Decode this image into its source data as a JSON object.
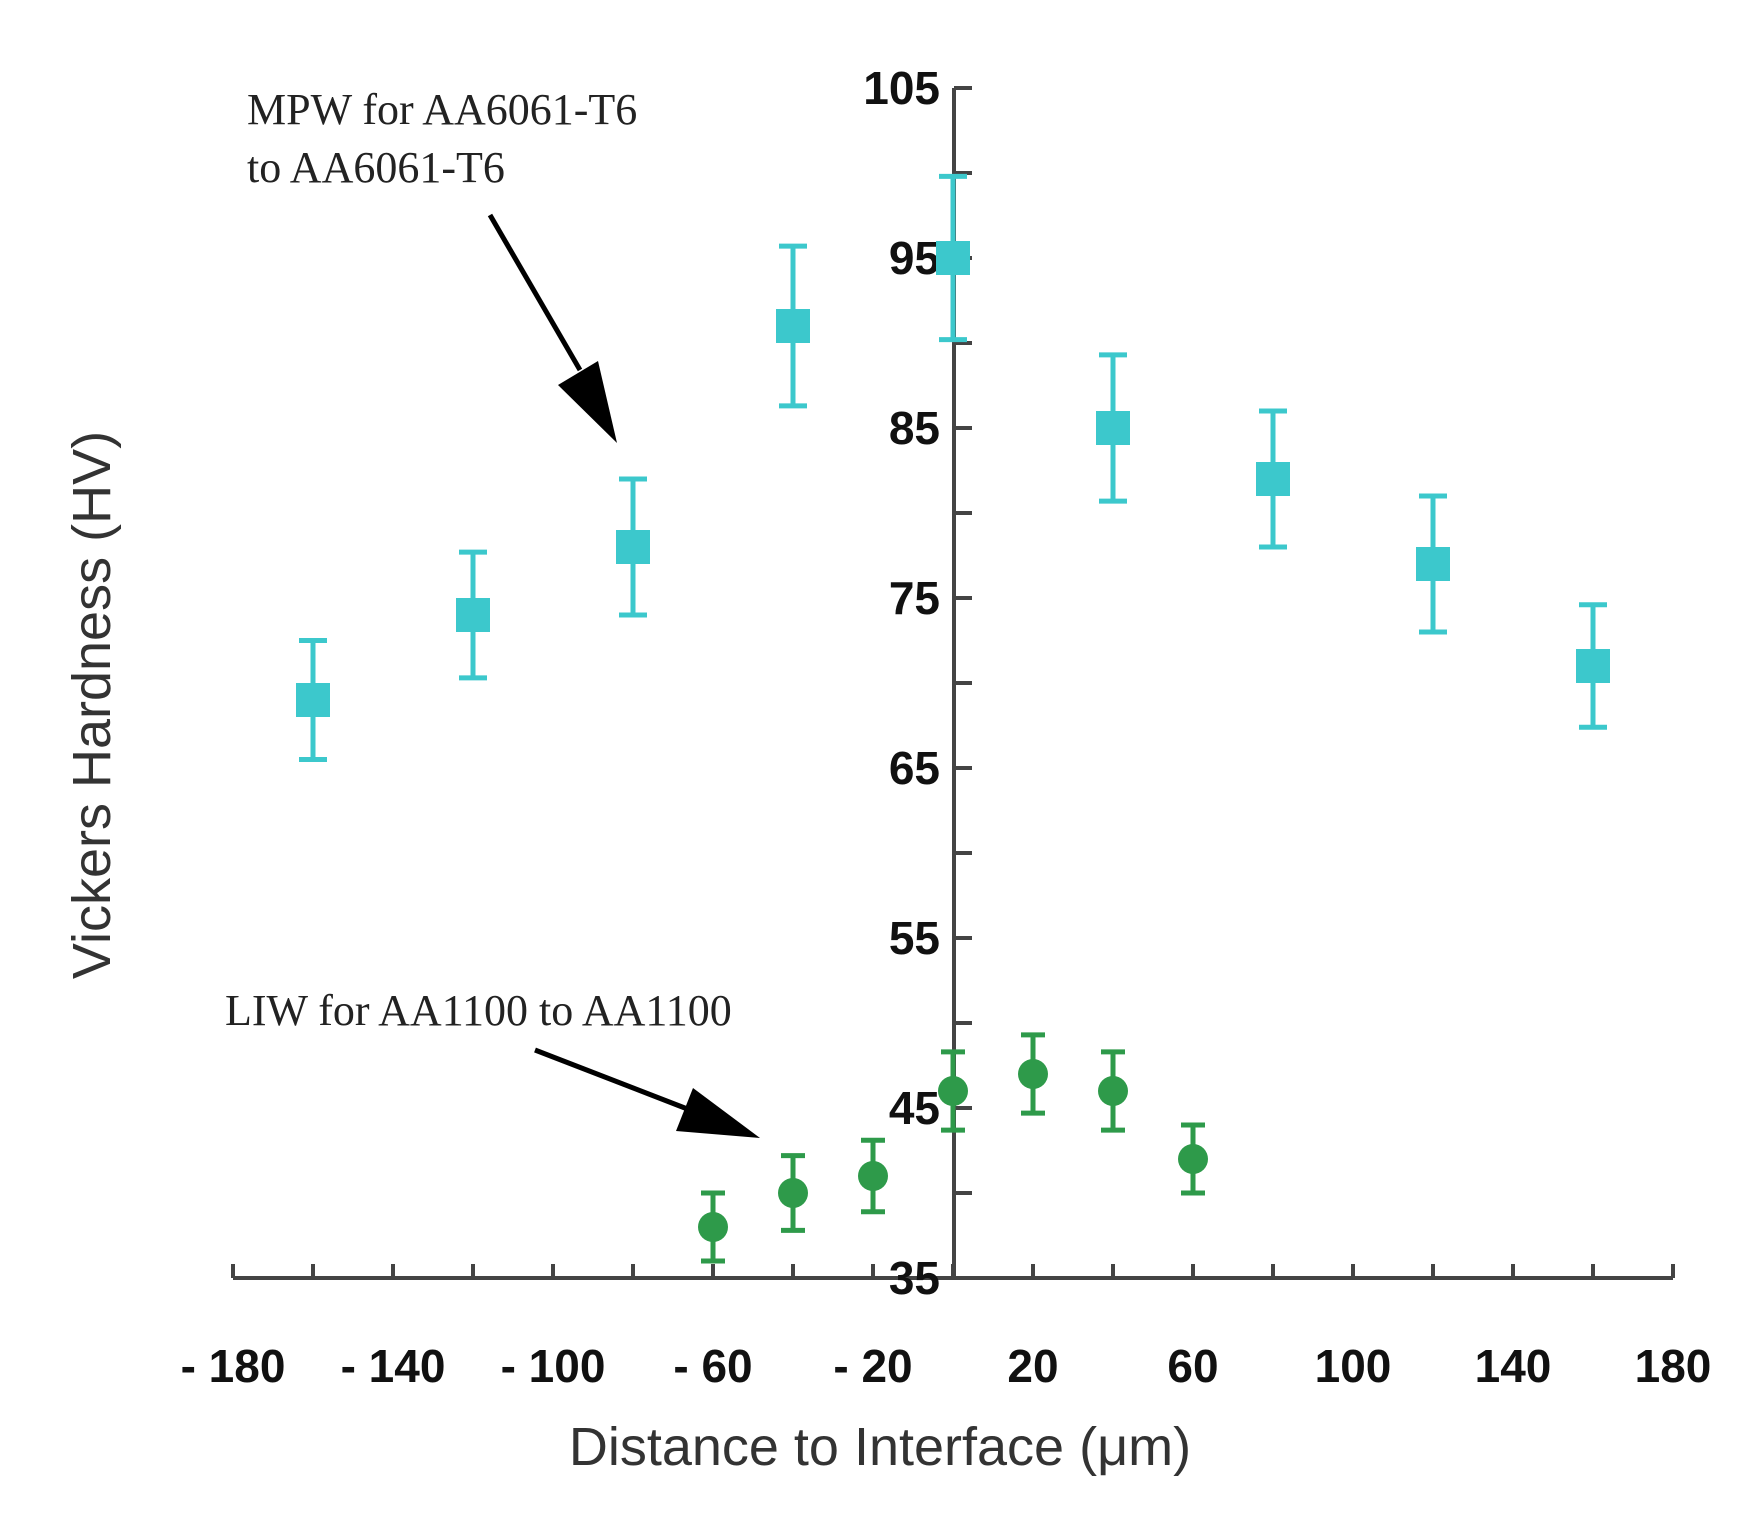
{
  "chart_data": {
    "type": "scatter",
    "title": "",
    "xlabel": "Distance to Interface (μm)",
    "ylabel": "Vickers Hardness (HV)",
    "xlim": [
      -180,
      180
    ],
    "ylim": [
      35,
      105
    ],
    "x_tick_labels": [
      "- 180",
      "- 140",
      "- 100",
      "- 60",
      "- 20",
      "20",
      "60",
      "100",
      "140",
      "180"
    ],
    "x_tick_values": [
      -180,
      -140,
      -100,
      -60,
      -20,
      20,
      60,
      100,
      140,
      180
    ],
    "x_minor_ticks": [
      -160,
      -120,
      -80,
      -40,
      0,
      40,
      80,
      120,
      160
    ],
    "y_tick_labels": [
      "105",
      "95",
      "85",
      "75",
      "65",
      "55",
      "45",
      "35"
    ],
    "y_tick_values": [
      105,
      95,
      85,
      75,
      65,
      55,
      45,
      35
    ],
    "y_minor_ticks": [
      100,
      90,
      80,
      70,
      60,
      50,
      40
    ],
    "grid": false,
    "series": [
      {
        "name": "MPW for AA6061-T6 to AA6061-T6",
        "marker": "square",
        "color": "#3cc8cc",
        "points": [
          {
            "x": -160,
            "y": 69,
            "err": 3.5
          },
          {
            "x": -120,
            "y": 74,
            "err": 3.7
          },
          {
            "x": -80,
            "y": 78,
            "err": 4.0
          },
          {
            "x": -40,
            "y": 91,
            "err": 4.7
          },
          {
            "x": 0,
            "y": 95,
            "err": 4.8
          },
          {
            "x": 40,
            "y": 85,
            "err": 4.3
          },
          {
            "x": 80,
            "y": 82,
            "err": 4.0
          },
          {
            "x": 120,
            "y": 77,
            "err": 4.0
          },
          {
            "x": 160,
            "y": 71,
            "err": 3.6
          }
        ]
      },
      {
        "name": "LIW for AA1100 to AA1100",
        "marker": "circle",
        "color": "#2e9a4a",
        "points": [
          {
            "x": -60,
            "y": 38,
            "err": 2.0
          },
          {
            "x": -40,
            "y": 40,
            "err": 2.2
          },
          {
            "x": -20,
            "y": 41,
            "err": 2.1
          },
          {
            "x": 0,
            "y": 46,
            "err": 2.3
          },
          {
            "x": 20,
            "y": 47,
            "err": 2.3
          },
          {
            "x": 40,
            "y": 46,
            "err": 2.3
          },
          {
            "x": 60,
            "y": 42,
            "err": 2.0
          }
        ]
      }
    ],
    "annotations": [
      {
        "lines": [
          "MPW for AA6061-T6",
          "to AA6061-T6"
        ],
        "target_series": 0
      },
      {
        "lines": [
          "LIW for AA1100 to AA1100"
        ],
        "target_series": 1
      }
    ]
  }
}
